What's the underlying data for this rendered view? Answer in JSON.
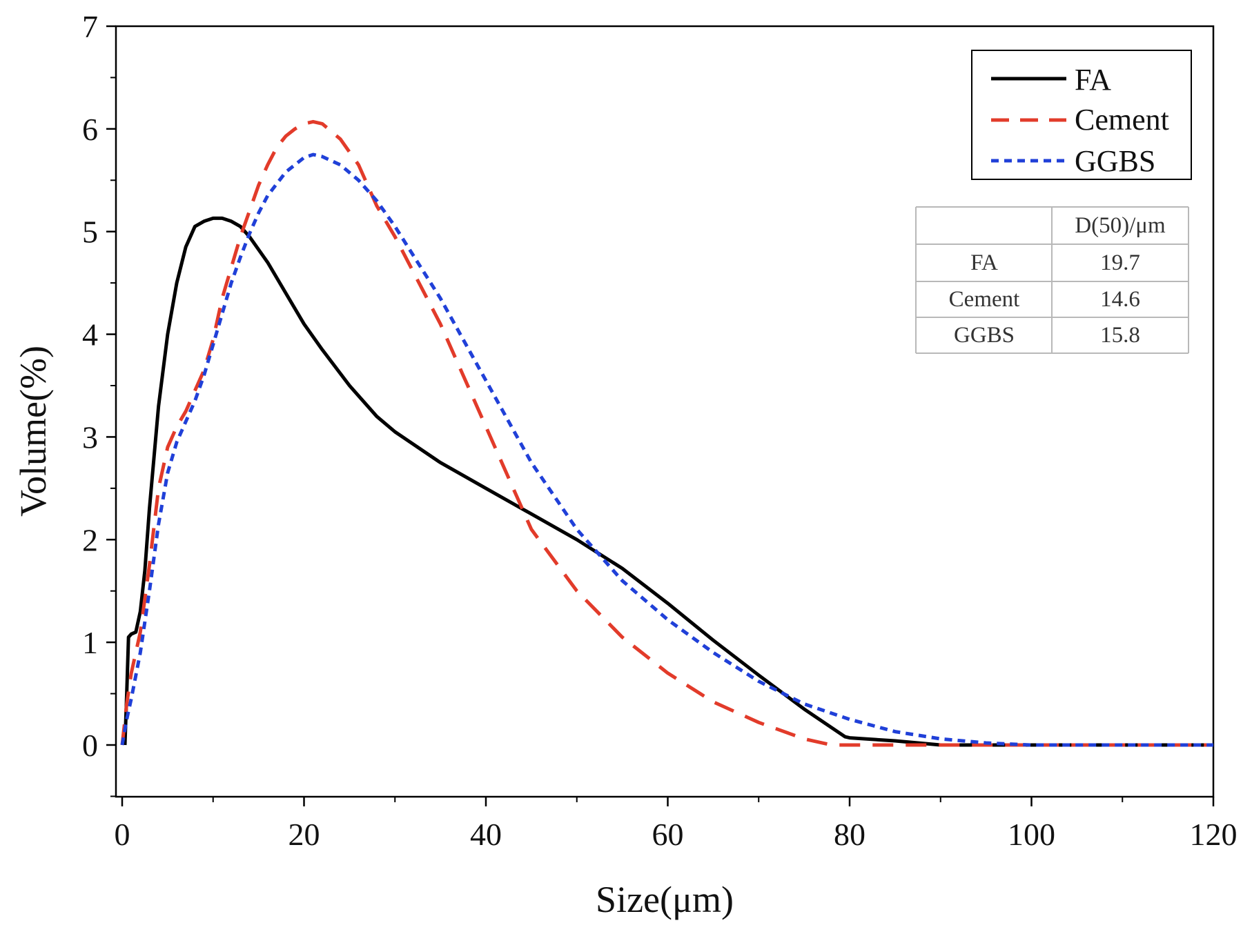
{
  "chart_data": {
    "type": "line",
    "title": "",
    "xlabel": "Size(μm)",
    "ylabel": "Volume(%)",
    "xlim": [
      -1,
      120
    ],
    "ylim": [
      -0.5,
      7
    ],
    "xticks": [
      0,
      20,
      40,
      60,
      80,
      100,
      120
    ],
    "yticks": [
      0,
      1,
      2,
      3,
      4,
      5,
      6,
      7
    ],
    "xtick_labels": [
      "0",
      "20",
      "40",
      "60",
      "80",
      "100",
      "120"
    ],
    "ytick_labels": [
      "0",
      "1",
      "2",
      "3",
      "4",
      "5",
      "6",
      "7"
    ],
    "legend_position": "top-right",
    "series": [
      {
        "name": "FA",
        "color": "#000000",
        "style": "solid",
        "x": [
          0.3,
          0.5,
          0.7,
          1.0,
          1.5,
          2.0,
          2.5,
          3.0,
          4.0,
          5.0,
          6.0,
          7.0,
          8.0,
          9.0,
          10.0,
          11.0,
          12.0,
          13.0,
          14.0,
          16.0,
          18.0,
          20.0,
          22.0,
          25.0,
          28.0,
          30.0,
          35.0,
          40.0,
          45.0,
          50.0,
          55.0,
          60.0,
          65.0,
          70.0,
          75.0,
          79.5,
          80.0,
          85.0,
          90.0,
          95.0,
          100.0,
          110.0,
          120.0
        ],
        "values": [
          0.0,
          0.5,
          1.05,
          1.08,
          1.1,
          1.3,
          1.7,
          2.3,
          3.3,
          4.0,
          4.5,
          4.85,
          5.05,
          5.1,
          5.13,
          5.13,
          5.1,
          5.05,
          4.95,
          4.7,
          4.4,
          4.1,
          3.85,
          3.5,
          3.2,
          3.05,
          2.75,
          2.5,
          2.25,
          2.0,
          1.72,
          1.38,
          1.02,
          0.68,
          0.35,
          0.08,
          0.07,
          0.04,
          0.0,
          0.0,
          0.0,
          0.0,
          0.0
        ]
      },
      {
        "name": "Cement",
        "color": "#e23b2a",
        "style": "dashed",
        "x": [
          0.0,
          0.5,
          1.0,
          1.5,
          2.0,
          3.0,
          4.0,
          5.0,
          6.0,
          7.0,
          8.0,
          9.0,
          10.0,
          11.0,
          12.0,
          13.0,
          14.0,
          15.0,
          16.0,
          17.0,
          18.0,
          19.0,
          20.0,
          21.0,
          22.0,
          24.0,
          26.0,
          28.0,
          30.0,
          35.0,
          40.0,
          45.0,
          50.0,
          55.0,
          60.0,
          65.0,
          70.0,
          75.0,
          78.0,
          80.0,
          90.0,
          100.0,
          110.0,
          120.0
        ],
        "values": [
          0.0,
          0.4,
          0.7,
          0.9,
          1.1,
          1.75,
          2.5,
          2.9,
          3.1,
          3.25,
          3.45,
          3.65,
          3.95,
          4.35,
          4.65,
          4.95,
          5.2,
          5.45,
          5.65,
          5.82,
          5.93,
          6.0,
          6.05,
          6.07,
          6.05,
          5.9,
          5.65,
          5.25,
          4.95,
          4.1,
          3.1,
          2.1,
          1.5,
          1.05,
          0.7,
          0.42,
          0.22,
          0.06,
          0.0,
          0.0,
          0.0,
          0.0,
          0.0,
          0.0
        ]
      },
      {
        "name": "GGBS",
        "color": "#2040d8",
        "style": "dotted",
        "x": [
          0.0,
          0.5,
          1.0,
          2.0,
          3.0,
          4.0,
          5.0,
          6.0,
          7.0,
          8.0,
          9.0,
          10.0,
          11.0,
          12.0,
          13.0,
          14.0,
          15.0,
          16.0,
          18.0,
          20.0,
          21.0,
          22.0,
          24.0,
          26.0,
          28.0,
          30.0,
          35.0,
          40.0,
          45.0,
          50.0,
          55.0,
          60.0,
          65.0,
          70.0,
          75.0,
          80.0,
          85.0,
          90.0,
          95.0,
          100.0,
          110.0,
          120.0
        ],
        "values": [
          0.0,
          0.25,
          0.45,
          0.9,
          1.5,
          2.15,
          2.65,
          2.95,
          3.15,
          3.35,
          3.6,
          3.9,
          4.2,
          4.5,
          4.75,
          4.98,
          5.18,
          5.35,
          5.58,
          5.72,
          5.75,
          5.73,
          5.65,
          5.5,
          5.3,
          5.05,
          4.35,
          3.55,
          2.75,
          2.1,
          1.6,
          1.22,
          0.9,
          0.62,
          0.4,
          0.25,
          0.13,
          0.06,
          0.02,
          0.0,
          0.0,
          0.0
        ]
      }
    ],
    "table": {
      "header": [
        "",
        "D(50)/μm"
      ],
      "rows": [
        [
          "FA",
          "19.7"
        ],
        [
          "Cement",
          "14.6"
        ],
        [
          "GGBS",
          "15.8"
        ]
      ]
    }
  }
}
